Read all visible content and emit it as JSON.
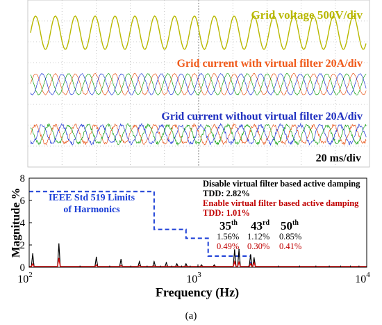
{
  "colors": {
    "scope_bg": "#ffffff",
    "grid_dots": "#9a9a9a",
    "grid_voltage": "#b8b800",
    "current_a": "#e8561a",
    "current_b": "#13a013",
    "current_c": "#2439d4",
    "current_with_label": "#f05a1a",
    "current_without_label": "#2030c0",
    "ieee_limit": "#1c3fd6",
    "spectrum_disabled": "#000000",
    "spectrum_enabled": "#e01010",
    "red_text": "#c00000"
  },
  "scope": {
    "voltage_label": "Grid voltage 500V/div",
    "with_filter_label": "Grid current with virtual filter 20A/div",
    "without_filter_label": "Grid current without virtual filter 20A/div",
    "timebase_label": "20 ms/div"
  },
  "caption": "(a)",
  "chart_data": {
    "type": "line",
    "xscale": "log",
    "xlim": [
      100,
      10000
    ],
    "ylim": [
      0,
      8
    ],
    "xlabel": "Frequency (Hz)",
    "ylabel": "Magnitude %",
    "x_ticks": [
      {
        "value": 100,
        "base": "10",
        "exp": "2"
      },
      {
        "value": 1000,
        "base": "10",
        "exp": "3"
      },
      {
        "value": 10000,
        "base": "10",
        "exp": "4"
      }
    ],
    "y_ticks": [
      "0",
      "2",
      "4",
      "6",
      "8"
    ],
    "ieee_label_line1": "IEEE Std 519 Limits",
    "ieee_label_line2": "of Harmonics",
    "ieee_limits": {
      "x": [
        100,
        550,
        550,
        850,
        850,
        1150,
        1150,
        2050,
        2050
      ],
      "y": [
        6.8,
        6.8,
        3.4,
        3.4,
        2.6,
        2.6,
        1.0,
        1.0,
        0.3
      ]
    },
    "annotations": {
      "disabled_title": "Disable virtual filter based active damping",
      "disabled_tdd": "TDD: 2.82%",
      "enabled_title": "Enable virtual filter based active damping",
      "enabled_tdd": "TDD: 1.01%"
    },
    "harmonic_table": [
      {
        "order": "35",
        "suffix": "th",
        "disabled": "1.56%",
        "enabled": "0.49%"
      },
      {
        "order": "43",
        "suffix": "rd",
        "disabled": "1.12%",
        "enabled": "0.30%"
      },
      {
        "order": "50",
        "suffix": "th",
        "disabled": "0.85%",
        "enabled": "0.41%"
      }
    ],
    "series": [
      {
        "legend": "Disable virtual filter based active damping",
        "color": "#000000",
        "x": [
          105,
          150,
          250,
          350,
          450,
          550,
          650,
          750,
          850,
          1050,
          1250,
          1650,
          1750,
          2050,
          2150
        ],
        "y": [
          1.2,
          2.1,
          0.9,
          0.7,
          0.5,
          0.5,
          0.4,
          0.3,
          0.3,
          0.2,
          0.2,
          1.56,
          1.6,
          1.12,
          0.85
        ]
      },
      {
        "legend": "Enable virtual filter based active damping",
        "color": "#e01010",
        "x": [
          105,
          150,
          250,
          350,
          450,
          550,
          650,
          750,
          850,
          1050,
          1250,
          1650,
          1750,
          2050,
          2150
        ],
        "y": [
          0.3,
          0.8,
          0.2,
          0.15,
          0.15,
          0.12,
          0.1,
          0.1,
          0.1,
          0.1,
          0.1,
          0.49,
          0.45,
          0.3,
          0.41
        ]
      }
    ]
  }
}
